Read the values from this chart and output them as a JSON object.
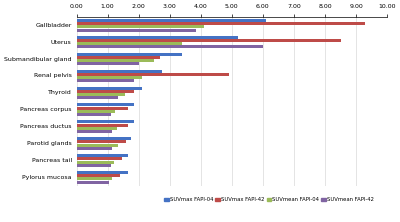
{
  "categories": [
    "Pylorus mucosa",
    "Pancreas tail",
    "Parotid glands",
    "Pancreas ductus",
    "Pancreas corpus",
    "Thyroid",
    "Renal pelvis",
    "Submandibular gland",
    "Uterus",
    "Gallbladder"
  ],
  "series": {
    "SUVmax FAPI-04": [
      1.65,
      1.65,
      1.75,
      1.85,
      1.85,
      2.1,
      2.75,
      3.4,
      5.2,
      6.1
    ],
    "SUVmax FAPI-42": [
      1.4,
      1.45,
      1.6,
      1.65,
      1.65,
      1.85,
      4.9,
      2.7,
      8.5,
      9.3
    ],
    "SUVmean FAPI-04": [
      1.15,
      1.2,
      1.35,
      1.3,
      1.25,
      1.55,
      2.1,
      2.5,
      3.4,
      4.1
    ],
    "SUVmean FAPI-42": [
      1.05,
      1.1,
      1.15,
      1.15,
      1.1,
      1.35,
      1.85,
      2.0,
      6.0,
      3.85
    ]
  },
  "colors": {
    "SUVmax FAPI-04": "#4472C4",
    "SUVmax FAPI-42": "#BE4B48",
    "SUVmean FAPI-04": "#9BBB59",
    "SUVmean FAPI-42": "#8064A2"
  },
  "xlim": [
    0,
    10.0
  ],
  "xtick_values": [
    0.0,
    1.0,
    2.0,
    3.0,
    4.0,
    5.0,
    6.0,
    7.0,
    8.0,
    9.0,
    10.0
  ],
  "xtick_labels": [
    "0.00",
    "1.00",
    "2.00",
    "3.00",
    "4.00",
    "5.00",
    "6.00",
    "7.00",
    "8.00",
    "9.00",
    "10.00"
  ],
  "bar_height": 0.19,
  "background_color": "#FFFFFF",
  "grid_color": "#D9D9D9",
  "tick_fontsize": 4.5,
  "label_fontsize": 4.5,
  "legend_fontsize": 3.8
}
